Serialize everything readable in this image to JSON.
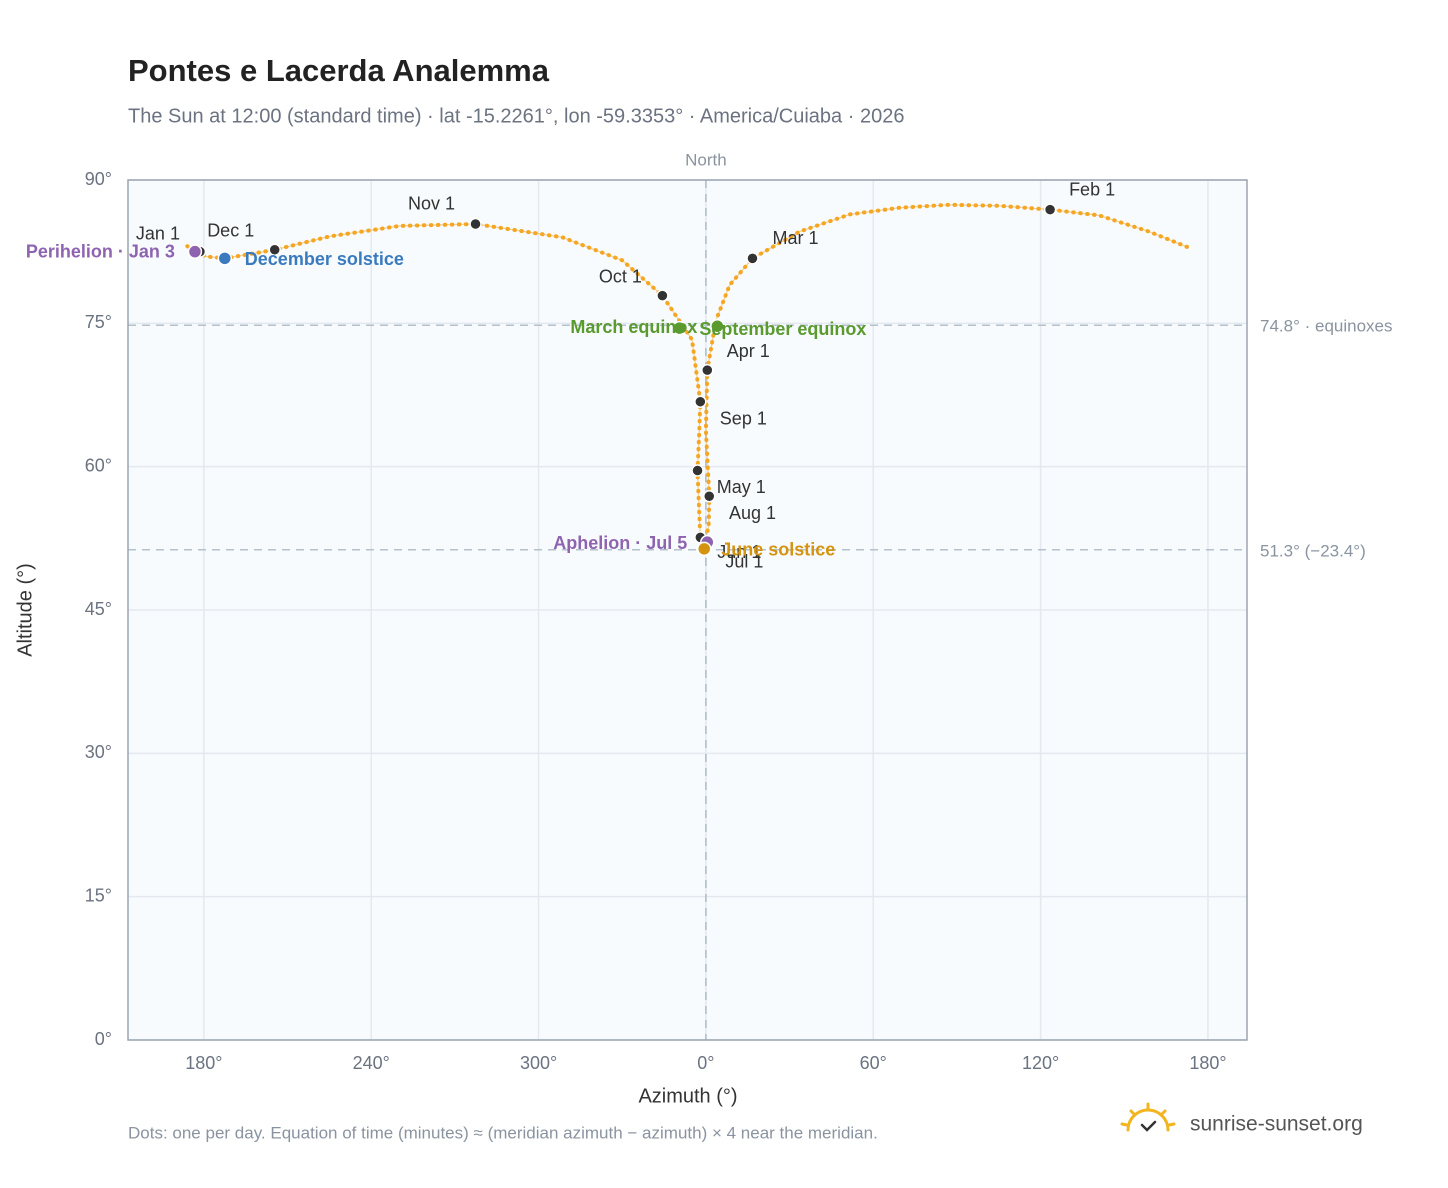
{
  "chart_data": {
    "type": "scatter",
    "title": "Pontes e Lacerda Analemma",
    "subtitle": "The Sun at 12:00 (standard time) · lat -15.2261°, lon -59.3353° · America/Cuiaba · 2026",
    "x_label": "Azimuth (°)",
    "y_label": "Altitude (°)",
    "footer": "Dots: one per day. Equation of time (minutes) ≈ (meridian azimuth − azimuth) × 4 near the meridian.",
    "brand": "sunrise-sunset.org",
    "xlim": [
      152.8,
      554
    ],
    "ylim": [
      0,
      90
    ],
    "xticks": [
      {
        "value": 180,
        "label": "180°"
      },
      {
        "value": 240,
        "label": "240°"
      },
      {
        "value": 300,
        "label": "300°"
      },
      {
        "value": 360,
        "label": "0°"
      },
      {
        "value": 420,
        "label": "60°"
      },
      {
        "value": 480,
        "label": "120°"
      },
      {
        "value": 540,
        "label": "180°"
      }
    ],
    "yticks": [
      {
        "value": 0,
        "label": "0°"
      },
      {
        "value": 15,
        "label": "15°"
      },
      {
        "value": 30,
        "label": "30°"
      },
      {
        "value": 45,
        "label": "45°"
      },
      {
        "value": 60,
        "label": "60°"
      },
      {
        "value": 75,
        "label": "75°"
      },
      {
        "value": 90,
        "label": "90°"
      }
    ],
    "grid": true,
    "path": {
      "color": "#f5a623",
      "x": [
        178.6,
        176.8,
        173.9,
        null,
        532.5,
        518.9,
        501.0,
        483.4,
        465.1,
        447.2,
        429.5,
        411.6,
        393.6,
        376.7,
        368.5,
        363.6,
        360.5,
        360.0,
        361.2,
        361.0,
        359.4,
        358.4,
        358.0,
        357.5,
        357.0,
        357.6,
        358.0,
        355.0,
        344.4,
        330.0,
        308.5,
        277.4,
        250.2,
        225.1,
        205.4,
        187.5,
        180.4,
        178.6
      ],
      "y": [
        82.5,
        82.5,
        83.1,
        null,
        83.0,
        84.6,
        86.3,
        86.9,
        87.3,
        87.4,
        87.1,
        86.4,
        84.6,
        81.8,
        79.0,
        75.3,
        70.1,
        63.8,
        56.9,
        53.9,
        51.4,
        52.0,
        52.6,
        56.0,
        59.6,
        63.5,
        66.8,
        73.3,
        77.9,
        81.6,
        84.0,
        85.4,
        85.2,
        84.1,
        82.7,
        81.8,
        82.0,
        82.5
      ]
    },
    "months": {
      "color": "#333333",
      "labels": [
        "Jan 1",
        "Feb 1",
        "Mar 1",
        "Apr 1",
        "May 1",
        "Jun 1",
        "Jul 1",
        "Aug 1",
        "Sep 1",
        "Oct 1",
        "Nov 1",
        "Dec 1"
      ],
      "x": [
        178.6,
        483.4,
        376.7,
        360.5,
        361.2,
        358.0,
        359.1,
        357.0,
        358.0,
        344.4,
        277.4,
        205.4
      ],
      "y": [
        82.5,
        86.9,
        81.8,
        70.1,
        56.9,
        52.6,
        51.5,
        59.6,
        66.8,
        77.9,
        85.4,
        82.7
      ]
    },
    "events": {
      "labels": [
        "Perihelion · Jan 3",
        "December solstice",
        "March equinox",
        "September equinox",
        "Aphelion · Jul 5",
        "June solstice"
      ],
      "x": [
        176.8,
        187.5,
        350.5,
        364.1,
        360.5,
        359.4
      ],
      "y": [
        82.5,
        81.8,
        74.5,
        74.7,
        52.1,
        51.4
      ],
      "colors": [
        "#8e63b0",
        "#3a7bbf",
        "#5a9a2f",
        "#5a9a2f",
        "#8e63b0",
        "#d4940f"
      ]
    },
    "reference_lines": {
      "values": [
        74.8,
        51.3
      ],
      "labels": [
        "74.8° · equinoxes",
        "51.3° (−23.4°)"
      ]
    },
    "meridian": {
      "value": 360,
      "label": "North"
    }
  }
}
